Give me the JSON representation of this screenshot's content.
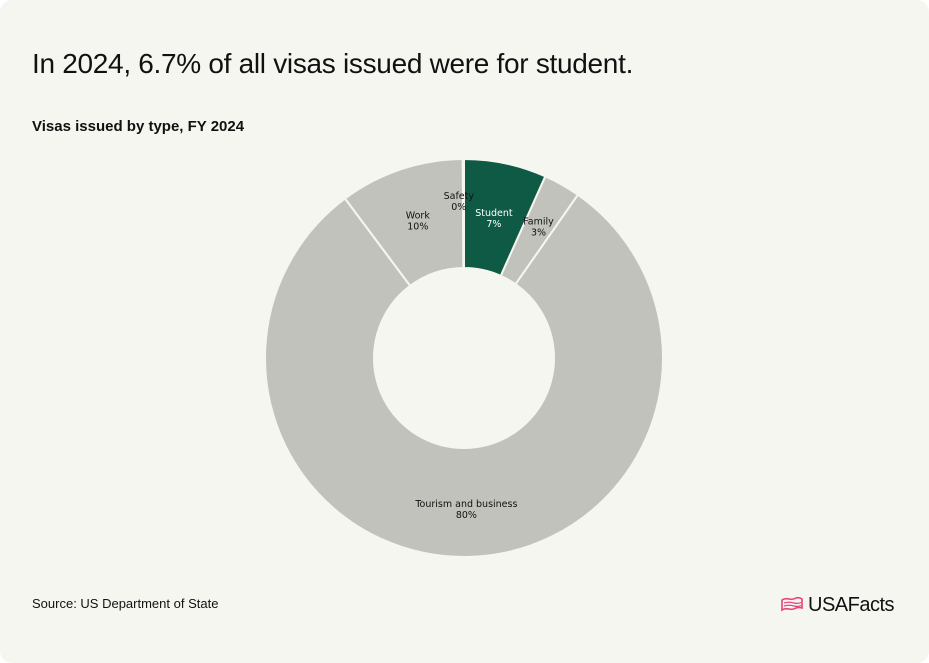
{
  "headline": "In 2024, 6.7% of all visas issued were for student.",
  "source": "Source: US Department of State",
  "logo": {
    "text": "USAFacts",
    "icon": "us-map-flag-icon",
    "icon_color": "#e8417a"
  },
  "colors": {
    "background": "#f6f6f1",
    "highlight": "#0e5a45",
    "slice": "#c2c2bc",
    "separator": "#f6f6f1"
  },
  "chart_data": {
    "type": "pie",
    "donut": true,
    "title": "Visas issued by type, FY 2024",
    "slices": [
      {
        "name": "Student",
        "value_label": "7%",
        "value": 6.7,
        "highlight": true
      },
      {
        "name": "Family",
        "value_label": "3%",
        "value": 3.0,
        "highlight": false
      },
      {
        "name": "Tourism and business",
        "value_label": "80%",
        "value": 80.1,
        "highlight": false
      },
      {
        "name": "Work",
        "value_label": "10%",
        "value": 10.1,
        "highlight": false
      },
      {
        "name": "Safety",
        "value_label": "0%",
        "value": 0.1,
        "highlight": false
      }
    ]
  }
}
